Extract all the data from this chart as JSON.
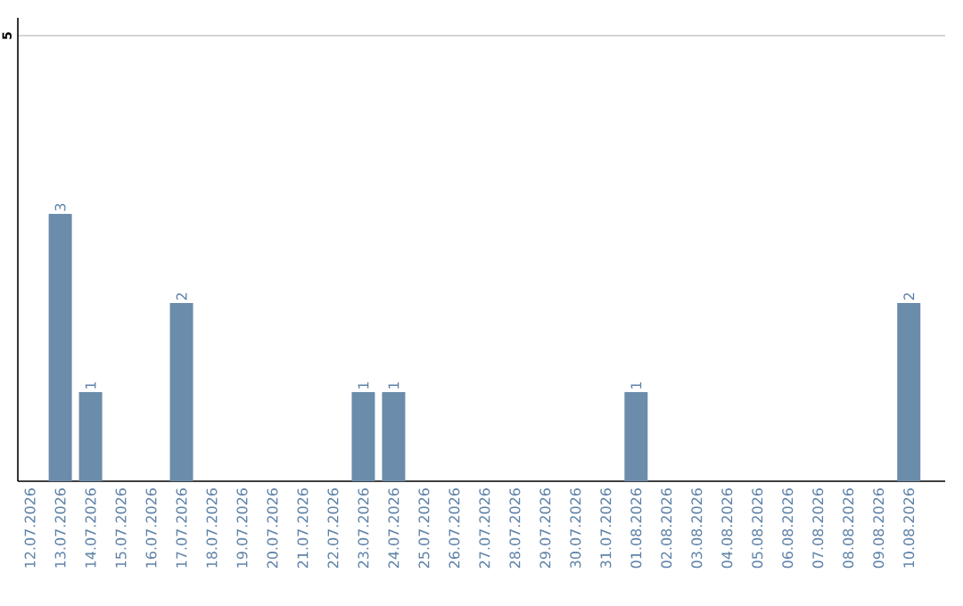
{
  "chart_data": {
    "type": "bar",
    "categories": [
      "12.07.2026",
      "13.07.2026",
      "14.07.2026",
      "15.07.2026",
      "16.07.2026",
      "17.07.2026",
      "18.07.2026",
      "19.07.2026",
      "20.07.2026",
      "21.07.2026",
      "22.07.2026",
      "23.07.2026",
      "24.07.2026",
      "25.07.2026",
      "26.07.2026",
      "27.07.2026",
      "28.07.2026",
      "29.07.2026",
      "30.07.2026",
      "31.07.2026",
      "01.08.2026",
      "02.08.2026",
      "03.08.2026",
      "04.08.2026",
      "05.08.2026",
      "06.08.2026",
      "07.08.2026",
      "08.08.2026",
      "09.08.2026",
      "10.08.2026"
    ],
    "values": [
      0,
      3,
      1,
      0,
      0,
      2,
      0,
      0,
      0,
      0,
      0,
      1,
      1,
      0,
      0,
      0,
      0,
      0,
      0,
      0,
      1,
      0,
      0,
      0,
      0,
      0,
      0,
      0,
      0,
      2
    ],
    "value_labels": [
      null,
      "3",
      "1",
      null,
      null,
      "2",
      null,
      null,
      null,
      null,
      null,
      "1",
      "1",
      null,
      null,
      null,
      null,
      null,
      null,
      null,
      "1",
      null,
      null,
      null,
      null,
      null,
      null,
      null,
      null,
      "2"
    ],
    "color": "#6b8cab",
    "ylim": [
      0,
      5.2
    ],
    "yticks": [
      5
    ],
    "grid": "y"
  }
}
